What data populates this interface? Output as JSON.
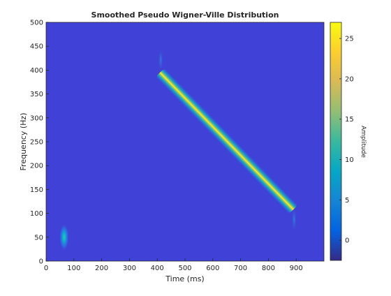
{
  "chart_data": {
    "type": "heatmap",
    "title": "Smoothed Pseudo Wigner-Ville Distribution",
    "xlabel": "Time (ms)",
    "ylabel": "Frequency (Hz)",
    "xlim": [
      0,
      1000
    ],
    "ylim": [
      0,
      500
    ],
    "x_ticks": [
      0,
      100,
      200,
      300,
      400,
      500,
      600,
      700,
      800,
      900
    ],
    "y_ticks": [
      0,
      50,
      100,
      150,
      200,
      250,
      300,
      350,
      400,
      450,
      500
    ],
    "x_tick_labels": [
      "0",
      "100",
      "200",
      "300",
      "400",
      "500",
      "600",
      "700",
      "800",
      "900"
    ],
    "y_tick_labels": [
      "0",
      "50",
      "100",
      "150",
      "200",
      "250",
      "300",
      "350",
      "400",
      "450",
      "500"
    ],
    "colormap": "parula",
    "background_value": 0,
    "features": [
      {
        "kind": "blob",
        "time_ms": 65,
        "freq_hz": 50,
        "peak_amplitude": 10
      },
      {
        "kind": "linear-chirp",
        "start_time_ms": 410,
        "start_freq_hz": 395,
        "end_time_ms": 890,
        "end_freq_hz": 108,
        "peak_amplitude": 27
      }
    ],
    "colorbar": {
      "label": "Amplitude",
      "range": [
        -2.5,
        27
      ],
      "ticks": [
        0,
        5,
        10,
        15,
        20,
        25
      ],
      "tick_labels": [
        "0",
        "5",
        "10",
        "15",
        "20",
        "25"
      ],
      "placement": "right"
    },
    "grid": false
  }
}
